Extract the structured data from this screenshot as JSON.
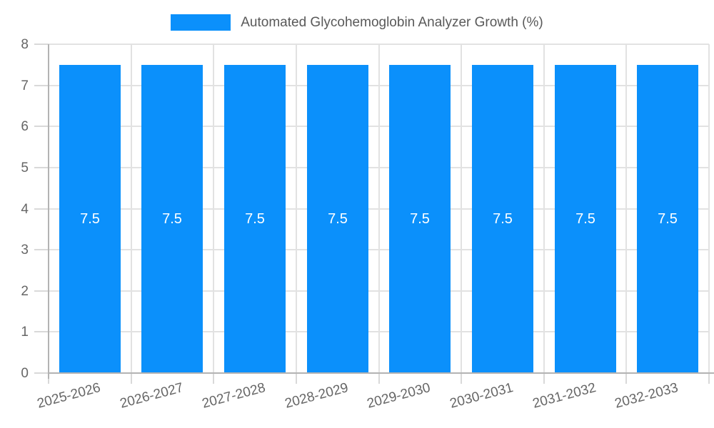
{
  "legend": {
    "series_label": "Automated Glycohemoglobin Analyzer Growth (%)"
  },
  "chart_data": {
    "type": "bar",
    "title": "Automated Glycohemoglobin Analyzer Growth (%)",
    "categories": [
      "2025-2026",
      "2026-2027",
      "2027-2028",
      "2028-2029",
      "2029-2030",
      "2030-2031",
      "2031-2032",
      "2032-2033"
    ],
    "values": [
      7.5,
      7.5,
      7.5,
      7.5,
      7.5,
      7.5,
      7.5,
      7.5
    ],
    "bar_labels": [
      "7.5",
      "7.5",
      "7.5",
      "7.5",
      "7.5",
      "7.5",
      "7.5",
      "7.5"
    ],
    "xlabel": "",
    "ylabel": "",
    "ylim": [
      0,
      8
    ],
    "yticks": [
      0,
      1,
      2,
      3,
      4,
      5,
      6,
      7,
      8
    ],
    "grid": true,
    "legend_position": "top",
    "x_label_rotation_deg": -15
  },
  "colors": {
    "bar": "#0b90fb",
    "bar_label": "#ffffff",
    "grid": "#e2e2e2",
    "axis": "#b3b3b3",
    "tick": "#d9d9d9",
    "tick_text": "#666666",
    "title_text": "#595959",
    "background": "#ffffff"
  }
}
